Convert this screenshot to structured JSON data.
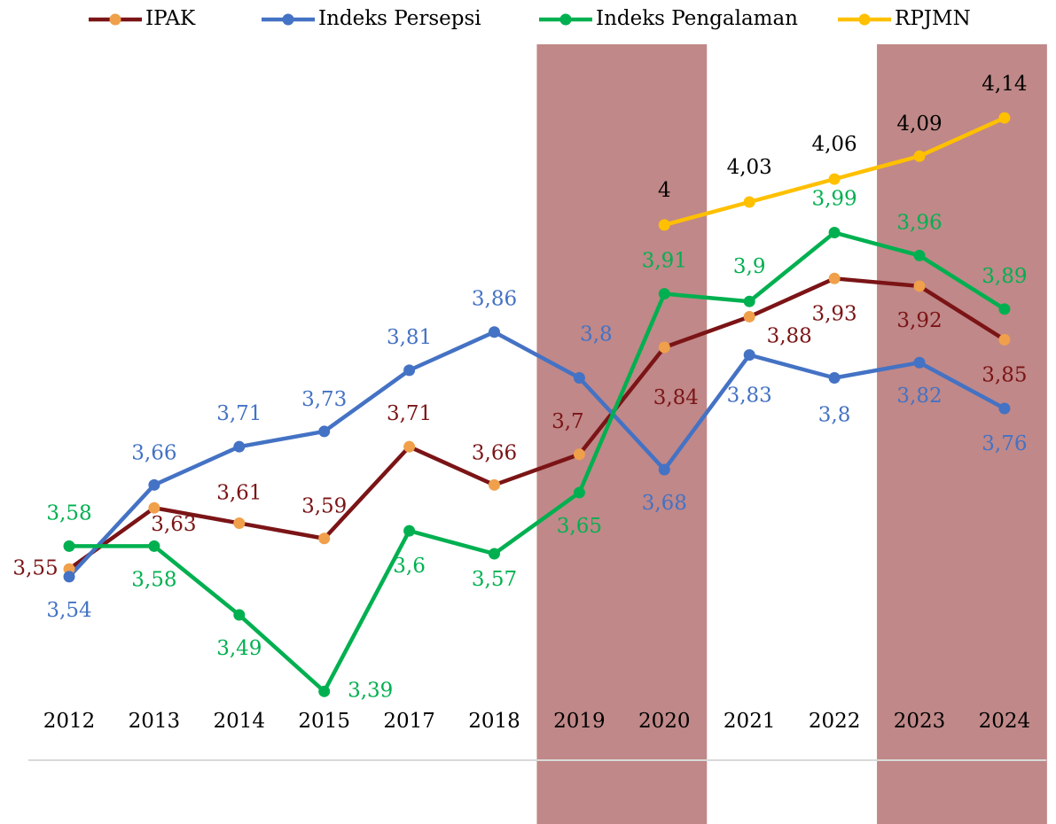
{
  "chart_data": {
    "type": "line",
    "categories": [
      "2012",
      "2013",
      "2014",
      "2015",
      "2017",
      "2018",
      "2019",
      "2020",
      "2021",
      "2022",
      "2023",
      "2024"
    ],
    "series": [
      {
        "name": "IPAK",
        "color": "#7b1416",
        "marker_color": "#f0a04b",
        "values": [
          3.55,
          3.63,
          3.61,
          3.59,
          3.71,
          3.66,
          3.7,
          3.84,
          3.88,
          3.93,
          3.92,
          3.85
        ],
        "value_labels": [
          "3,55",
          "3,63",
          "3,61",
          "3,59",
          "3,71",
          "3,66",
          "3,7",
          "3,84",
          "3,88",
          "3,93",
          "3,92",
          "3,85"
        ]
      },
      {
        "name": "Indeks Persepsi",
        "color": "#4472c4",
        "marker_color": "#4472c4",
        "values": [
          3.54,
          3.66,
          3.71,
          3.73,
          3.81,
          3.86,
          3.8,
          3.68,
          3.83,
          3.8,
          3.82,
          3.76
        ],
        "value_labels": [
          "3,54",
          "3,66",
          "3,71",
          "3,73",
          "3,81",
          "3,86",
          "3,8",
          "3,68",
          "3,83",
          "3,8",
          "3,82",
          "3,76"
        ]
      },
      {
        "name": "Indeks Pengalaman",
        "color": "#00b050",
        "marker_color": "#00b050",
        "values": [
          3.58,
          3.58,
          3.49,
          3.39,
          3.6,
          3.57,
          3.65,
          3.91,
          3.9,
          3.99,
          3.96,
          3.89
        ],
        "value_labels": [
          "3,58",
          "3,58",
          "3,49",
          "3,39",
          "3,6",
          "3,57",
          "3,65",
          "3,91",
          "3,9",
          "3,99",
          "3,96",
          "3,89"
        ]
      },
      {
        "name": "RPJMN",
        "color": "#ffc000",
        "marker_color": "#ffc000",
        "label_color": "#000000",
        "values": [
          null,
          null,
          null,
          null,
          null,
          null,
          null,
          4,
          4.03,
          4.06,
          4.09,
          4.14
        ],
        "value_labels": [
          null,
          null,
          null,
          null,
          null,
          null,
          null,
          "4",
          "4,03",
          "4,06",
          "4,09",
          "4,14"
        ]
      }
    ],
    "ylim": [
      3.3,
      4.3
    ],
    "highlights": [
      [
        "2019",
        "2020"
      ],
      [
        "2023",
        "2024"
      ]
    ],
    "highlight_color": "#c08888",
    "legend": "top"
  }
}
